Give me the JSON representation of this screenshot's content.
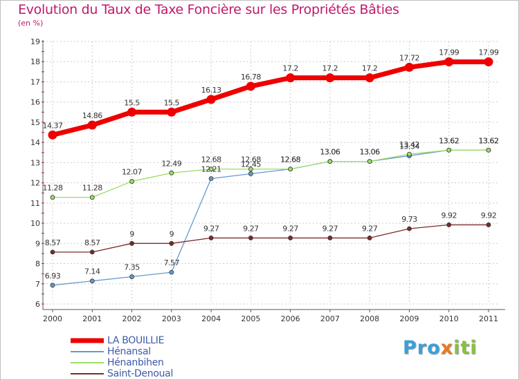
{
  "chart_data": {
    "type": "line",
    "title": "Evolution du Taux de Taxe Foncière sur les Propriétés Bâties",
    "ylabel": "(en %)",
    "xlabel": "",
    "ylim": [
      6,
      19
    ],
    "yticks": [
      "6",
      "7",
      "8",
      "9",
      "10",
      "11",
      "12",
      "13",
      "14",
      "15",
      "16",
      "17",
      "18",
      "19"
    ],
    "categories": [
      "2000",
      "2001",
      "2002",
      "2003",
      "2004",
      "2005",
      "2006",
      "2007",
      "2008",
      "2009",
      "2010",
      "2011"
    ],
    "series": [
      {
        "name": "LA BOUILLIE",
        "color": "#ee0000",
        "values": [
          14.37,
          14.86,
          15.5,
          15.5,
          16.13,
          16.78,
          17.2,
          17.2,
          17.2,
          17.72,
          17.99,
          17.99
        ],
        "labels": [
          "14.37",
          "14.86",
          "15.5",
          "15.5",
          "16.13",
          "16.78",
          "17.2",
          "17.2",
          "17.2",
          "17.72",
          "17.99",
          "17.99"
        ]
      },
      {
        "name": "Hénansal",
        "color": "#6699cc",
        "values": [
          6.93,
          7.14,
          7.35,
          7.57,
          12.21,
          12.45,
          12.68,
          13.06,
          13.06,
          13.34,
          13.62,
          13.62
        ],
        "labels": [
          "6.93",
          "7.14",
          "7.35",
          "7.57",
          "12.21",
          "12.45",
          "12.68",
          "13.06",
          "13.06",
          "13.34",
          "13.62",
          "13.62"
        ]
      },
      {
        "name": "Hénanbihen",
        "color": "#99dd66",
        "values": [
          11.28,
          11.28,
          12.07,
          12.49,
          12.68,
          12.68,
          12.68,
          13.06,
          13.06,
          13.42,
          13.62,
          13.62
        ],
        "labels": [
          "11.28",
          "11.28",
          "12.07",
          "12.49",
          "12.68",
          "12.68",
          "12.68",
          "13.06",
          "13.06",
          "13.42",
          "13.62",
          "13.62"
        ]
      },
      {
        "name": "Saint-Denoual",
        "color": "#7a2a2a",
        "values": [
          8.57,
          8.57,
          9,
          9,
          9.27,
          9.27,
          9.27,
          9.27,
          9.27,
          9.73,
          9.92,
          9.92
        ],
        "labels": [
          "8.57",
          "8.57",
          "9",
          "9",
          "9.27",
          "9.27",
          "9.27",
          "9.27",
          "9.27",
          "9.73",
          "9.92",
          "9.92"
        ]
      }
    ]
  },
  "logo": {
    "p1": "Pro",
    "x": "x",
    "p2": "iti"
  }
}
